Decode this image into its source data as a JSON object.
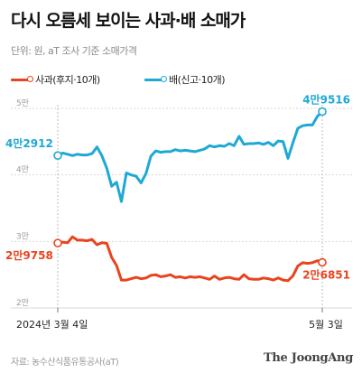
{
  "title": "다시 오름세 보이는 사과·배 소매가",
  "unit_note": "단위: 원, aT 조사 기준 소매가격",
  "source": "자료: 농수산식품유통공사(aT)",
  "brand": "The JoongAng",
  "colors": {
    "apple": "#e8441d",
    "pear": "#1fa8d6",
    "grid": "#d9d9d9",
    "axis_text": "#9a9a9a"
  },
  "chart_data": {
    "type": "line",
    "ylim": [
      20000,
      50000
    ],
    "y_ticks": [
      {
        "value": 50000,
        "label": "5만"
      },
      {
        "value": 40000,
        "label": "4만"
      },
      {
        "value": 30000,
        "label": "3만"
      },
      {
        "value": 20000,
        "label": "2만"
      }
    ],
    "x_labels": {
      "start": "2024년 3월 4일",
      "end": "5월 3일"
    },
    "series": [
      {
        "name": "배(신고·10개)",
        "color_key": "pear",
        "start_label": "4만2912",
        "end_label": "4만9516",
        "values": [
          42912,
          43300,
          43100,
          42900,
          43100,
          43000,
          43000,
          43200,
          44200,
          42900,
          41000,
          38300,
          38900,
          36000,
          40300,
          40000,
          39800,
          38800,
          40200,
          42800,
          43600,
          43400,
          43500,
          43500,
          43800,
          43600,
          43700,
          43600,
          43500,
          43700,
          43900,
          44400,
          44200,
          44400,
          44300,
          44700,
          44400,
          45800,
          44600,
          44700,
          44700,
          44800,
          44600,
          44900,
          44400,
          45100,
          45000,
          42500,
          44800,
          47000,
          47400,
          47500,
          47500,
          48800,
          49516
        ]
      },
      {
        "name": "사과(후지·10개)",
        "color_key": "apple",
        "start_label": "2만9758",
        "end_label": "2만6851",
        "values": [
          29758,
          29900,
          29800,
          30700,
          30200,
          30200,
          30100,
          30300,
          29500,
          29800,
          29700,
          27600,
          26400,
          24200,
          24200,
          24400,
          24600,
          24400,
          24500,
          24900,
          25000,
          24700,
          24800,
          25000,
          24600,
          24700,
          24500,
          24700,
          24600,
          24700,
          24500,
          24300,
          24800,
          24300,
          24500,
          24600,
          24400,
          24300,
          25000,
          24400,
          24300,
          24300,
          24500,
          24400,
          24200,
          24500,
          24200,
          24100,
          24800,
          26300,
          26800,
          26700,
          26800,
          27100,
          26851
        ]
      }
    ]
  }
}
